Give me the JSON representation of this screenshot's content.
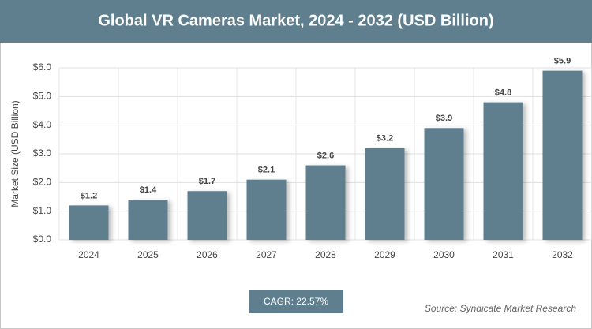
{
  "chart_data": {
    "type": "bar",
    "title": "Global VR Cameras Market, 2024 - 2032 (USD Billion)",
    "y_label": "Market Size (USD Billion)",
    "categories": [
      "2024",
      "2025",
      "2026",
      "2027",
      "2028",
      "2029",
      "2030",
      "2031",
      "2032"
    ],
    "values": [
      1.2,
      1.4,
      1.7,
      2.1,
      2.6,
      3.2,
      3.9,
      4.8,
      5.9
    ],
    "value_labels": [
      "$1.2",
      "$1.4",
      "$1.7",
      "$2.1",
      "$2.6",
      "$3.2",
      "$3.9",
      "$4.8",
      "$5.9"
    ],
    "color": "#5f7f8f",
    "ylim": [
      0,
      6
    ],
    "yticks": [
      {
        "value": 0,
        "label": "$0.0"
      },
      {
        "value": 1,
        "label": "$1.0"
      },
      {
        "value": 2,
        "label": "$2.0"
      },
      {
        "value": 3,
        "label": "$3.0"
      },
      {
        "value": 4,
        "label": "$4.0"
      },
      {
        "value": 5,
        "label": "$5.0"
      },
      {
        "value": 6,
        "label": "$6.0"
      }
    ],
    "grid": true,
    "annotation": "CAGR: 22.57%",
    "source": "Source: Syndicate Market Research"
  }
}
